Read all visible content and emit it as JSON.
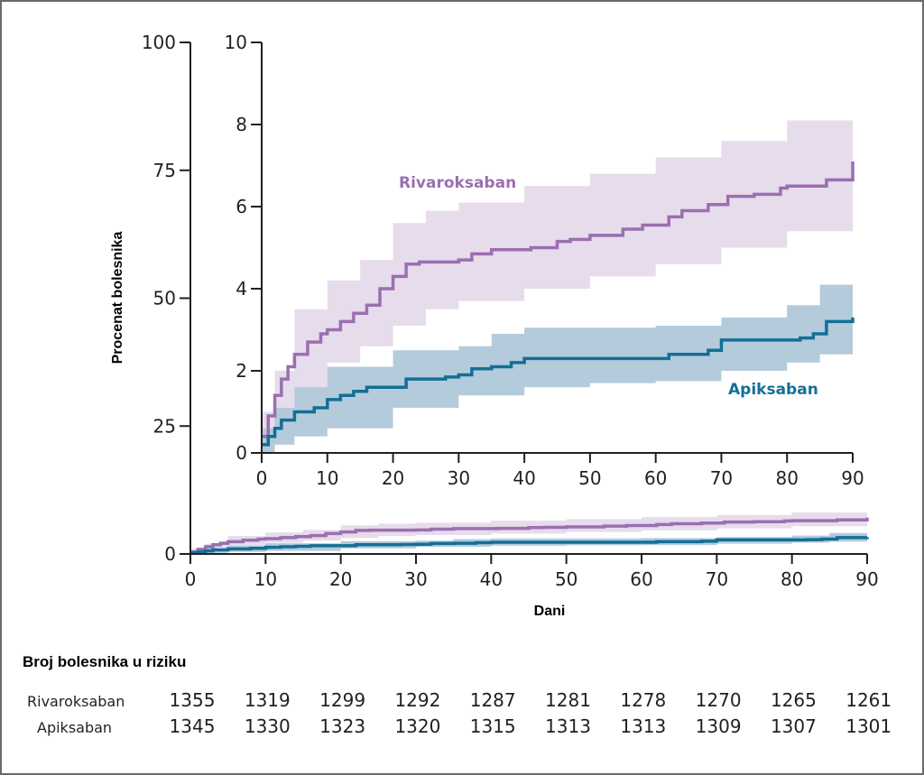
{
  "chart_data": [
    {
      "id": "main",
      "type": "line",
      "title": "",
      "xlabel": "Dani",
      "ylabel": "Procenat bolesnika",
      "xlim": [
        0,
        90
      ],
      "ylim": [
        0,
        100
      ],
      "x_ticks": [
        0,
        10,
        20,
        30,
        40,
        50,
        60,
        70,
        80,
        90
      ],
      "y_ticks": [
        0,
        25,
        50,
        75,
        100
      ],
      "grid": false,
      "series": [
        {
          "name": "Rivaroksaban",
          "color": "#9b6fb0",
          "ci_color": "#e6dcec",
          "steps": [
            [
              0,
              0.4
            ],
            [
              1,
              0.9
            ],
            [
              2,
              1.4
            ],
            [
              3,
              1.8
            ],
            [
              4,
              2.1
            ],
            [
              5,
              2.4
            ],
            [
              7,
              2.7
            ],
            [
              9,
              2.9
            ],
            [
              10,
              3.0
            ],
            [
              12,
              3.2
            ],
            [
              14,
              3.4
            ],
            [
              16,
              3.6
            ],
            [
              18,
              4.0
            ],
            [
              20,
              4.3
            ],
            [
              22,
              4.6
            ],
            [
              24,
              4.65
            ],
            [
              30,
              4.7
            ],
            [
              32,
              4.85
            ],
            [
              35,
              4.95
            ],
            [
              41,
              5.0
            ],
            [
              45,
              5.15
            ],
            [
              47,
              5.2
            ],
            [
              50,
              5.3
            ],
            [
              55,
              5.45
            ],
            [
              58,
              5.55
            ],
            [
              62,
              5.75
            ],
            [
              64,
              5.9
            ],
            [
              68,
              6.05
            ],
            [
              71,
              6.25
            ],
            [
              75,
              6.3
            ],
            [
              79,
              6.45
            ],
            [
              80,
              6.5
            ],
            [
              86,
              6.65
            ],
            [
              90,
              7.1
            ]
          ],
          "ci_lower": [
            [
              0,
              0.0
            ],
            [
              2,
              0.6
            ],
            [
              5,
              1.3
            ],
            [
              10,
              2.2
            ],
            [
              15,
              2.6
            ],
            [
              20,
              3.1
            ],
            [
              25,
              3.5
            ],
            [
              30,
              3.7
            ],
            [
              40,
              4.0
            ],
            [
              50,
              4.3
            ],
            [
              60,
              4.6
            ],
            [
              70,
              5.0
            ],
            [
              80,
              5.4
            ],
            [
              90,
              5.8
            ]
          ],
          "ci_upper": [
            [
              0,
              1.0
            ],
            [
              2,
              2.0
            ],
            [
              5,
              3.5
            ],
            [
              10,
              4.2
            ],
            [
              15,
              4.7
            ],
            [
              20,
              5.6
            ],
            [
              25,
              5.9
            ],
            [
              30,
              6.1
            ],
            [
              40,
              6.5
            ],
            [
              50,
              6.8
            ],
            [
              60,
              7.2
            ],
            [
              70,
              7.6
            ],
            [
              80,
              8.1
            ],
            [
              90,
              8.6
            ]
          ]
        },
        {
          "name": "Apiksaban",
          "color": "#136f96",
          "ci_color": "#b0c8da",
          "steps": [
            [
              0,
              0.2
            ],
            [
              1,
              0.4
            ],
            [
              2,
              0.6
            ],
            [
              3,
              0.8
            ],
            [
              5,
              1.0
            ],
            [
              8,
              1.1
            ],
            [
              10,
              1.3
            ],
            [
              12,
              1.4
            ],
            [
              14,
              1.5
            ],
            [
              16,
              1.6
            ],
            [
              20,
              1.6
            ],
            [
              22,
              1.8
            ],
            [
              28,
              1.85
            ],
            [
              30,
              1.9
            ],
            [
              32,
              2.05
            ],
            [
              35,
              2.1
            ],
            [
              38,
              2.2
            ],
            [
              40,
              2.3
            ],
            [
              55,
              2.3
            ],
            [
              62,
              2.4
            ],
            [
              68,
              2.5
            ],
            [
              70,
              2.75
            ],
            [
              82,
              2.8
            ],
            [
              84,
              2.9
            ],
            [
              86,
              3.2
            ],
            [
              90,
              3.3
            ]
          ],
          "ci_lower": [
            [
              0,
              0.0
            ],
            [
              2,
              0.2
            ],
            [
              5,
              0.4
            ],
            [
              10,
              0.6
            ],
            [
              20,
              1.1
            ],
            [
              30,
              1.4
            ],
            [
              40,
              1.6
            ],
            [
              50,
              1.7
            ],
            [
              60,
              1.75
            ],
            [
              70,
              2.0
            ],
            [
              80,
              2.2
            ],
            [
              85,
              2.4
            ],
            [
              90,
              2.5
            ]
          ],
          "ci_upper": [
            [
              0,
              0.6
            ],
            [
              2,
              1.1
            ],
            [
              5,
              1.6
            ],
            [
              10,
              2.1
            ],
            [
              20,
              2.5
            ],
            [
              30,
              2.6
            ],
            [
              35,
              2.9
            ],
            [
              40,
              3.05
            ],
            [
              50,
              3.05
            ],
            [
              60,
              3.1
            ],
            [
              70,
              3.3
            ],
            [
              80,
              3.6
            ],
            [
              85,
              4.1
            ],
            [
              90,
              4.3
            ]
          ]
        }
      ]
    },
    {
      "id": "inset",
      "type": "line",
      "title": "",
      "xlabel": "",
      "ylabel": "",
      "xlim": [
        0,
        90
      ],
      "ylim": [
        0,
        10
      ],
      "x_ticks": [
        0,
        10,
        20,
        30,
        40,
        50,
        60,
        70,
        80,
        90
      ],
      "y_ticks": [
        0,
        2,
        4,
        6,
        8,
        10
      ],
      "grid": false,
      "series_labels": [
        "Rivaroksaban",
        "Apiksaban"
      ],
      "note": "Same series as main chart, zoomed to 0-10% y-range"
    }
  ],
  "risk_table": {
    "title": "Broj bolesnika u riziku",
    "days": [
      0,
      10,
      20,
      30,
      40,
      50,
      60,
      70,
      80,
      90
    ],
    "rows": [
      {
        "label": "Rivaroksaban",
        "values": [
          "1355",
          "1319",
          "1299",
          "1292",
          "1287",
          "1281",
          "1278",
          "1270",
          "1265",
          "1261"
        ]
      },
      {
        "label": "Apiksaban",
        "values": [
          "1345",
          "1330",
          "1323",
          "1320",
          "1315",
          "1313",
          "1313",
          "1309",
          "1307",
          "1301"
        ]
      }
    ]
  }
}
